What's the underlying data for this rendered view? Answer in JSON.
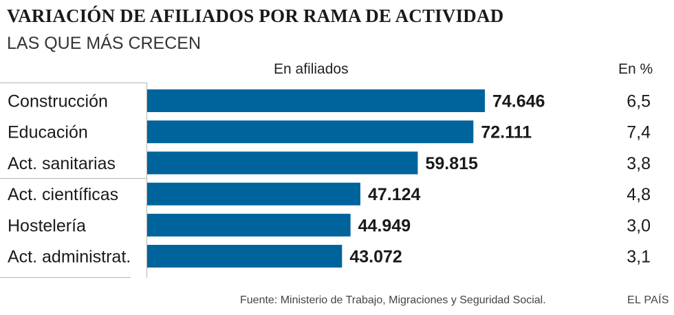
{
  "title": "VARIACIÓN DE AFILIADOS POR RAMA DE ACTIVIDAD",
  "subtitle": "LAS QUE MÁS CRECEN",
  "column_headers": {
    "absolute": "En afiliados",
    "percent": "En %"
  },
  "source": "Fuente: Ministerio de Trabajo, Migraciones y Seguridad Social.",
  "brand": "EL PAÍS",
  "colors": {
    "bar": "#00649c",
    "rule": "#b4b4b4"
  },
  "chart_data": {
    "type": "bar",
    "orientation": "horizontal",
    "title": "VARIACIÓN DE AFILIADOS POR RAMA DE ACTIVIDAD",
    "subtitle": "LAS QUE MÁS CRECEN",
    "categories": [
      "Construcción",
      "Educación",
      "Act. sanitarias",
      "Act. científicas",
      "Hostelería",
      "Act. administrat."
    ],
    "series": [
      {
        "name": "En afiliados",
        "values": [
          74646,
          72111,
          59815,
          47124,
          44949,
          43072
        ],
        "labels": [
          "74.646",
          "72.111",
          "59.815",
          "47.124",
          "44.949",
          "43.072"
        ]
      },
      {
        "name": "En %",
        "values": [
          6.5,
          7.4,
          3.8,
          4.8,
          3.0,
          3.1
        ],
        "labels": [
          "6,5",
          "7,4",
          "3,8",
          "4,8",
          "3,0",
          "3,1"
        ]
      }
    ],
    "xlim": [
      0,
      100000
    ],
    "grid": false,
    "legend": "none"
  }
}
